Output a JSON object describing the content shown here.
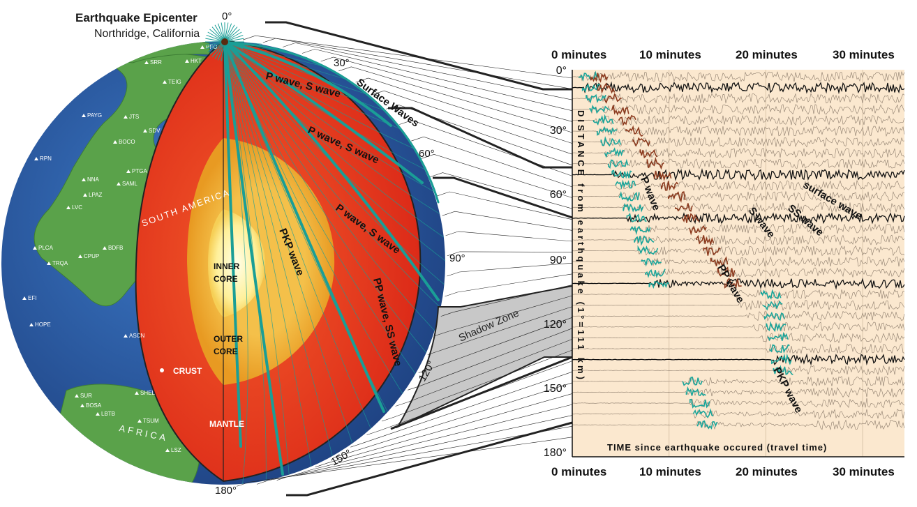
{
  "header": {
    "title": "Earthquake Epicenter",
    "subtitle": "Northridge, California"
  },
  "globe": {
    "stations": [
      "PFO",
      "SRR",
      "HKT",
      "TEIG",
      "PAYG",
      "JTS",
      "SDV",
      "BOCO",
      "RPN",
      "PTGA",
      "SAML",
      "NNA",
      "LPAZ",
      "LVC",
      "BDFB",
      "PLCA",
      "CPUP",
      "TRQA",
      "EFI",
      "HOPE",
      "ASCN",
      "SUR",
      "BOSA",
      "LBTB",
      "SHEL",
      "TSUM",
      "LSZ"
    ],
    "continent_labels": [
      "SOUTH AMERICA",
      "AFRICA"
    ],
    "layer_labels": {
      "inner_core": "INNER\nCORE",
      "outer_core": "OUTER\nCORE",
      "crust": "CRUST",
      "mantle": "MANTLE"
    },
    "degree_labels": [
      "0°",
      "30°",
      "60°",
      "90°",
      "120°",
      "150°",
      "180°"
    ],
    "wave_labels": [
      "P wave, S wave",
      "P wave, S wave",
      "P wave, S wave",
      "Surface Waves",
      "PKP wave",
      "PP wave, SS wave"
    ],
    "shadow_zone_label": "Shadow Zone",
    "colors": {
      "ocean": "#2a5fa8",
      "land": "#5aa24a",
      "mantle": "#e8321e",
      "outer_core": "#e8a020",
      "inner_core": "#fff6a8",
      "ray": "#1a9e96",
      "shadow": "#c8c8c8"
    }
  },
  "seismogram": {
    "top_axis_labels": [
      "0 minutes",
      "10 minutes",
      "20 minutes",
      "30 minutes"
    ],
    "bottom_axis_labels": [
      "0 minutes",
      "10 minutes",
      "20 minutes",
      "30 minutes"
    ],
    "distance_ticks": [
      "0°",
      "30°",
      "60°",
      "90°",
      "120°",
      "150°",
      "180°"
    ],
    "y_title": "DISTANCE from earthquake (1°=111 km)",
    "x_title": "TIME since earthquake occured (travel time)",
    "phase_labels": [
      "P wave",
      "S wave",
      "SS wave",
      "surface wave",
      "PP wave",
      "PKP wave"
    ],
    "colors": {
      "background": "#fbe8cf",
      "p_phase": "#1aa59a",
      "s_phase": "#8b3a1e",
      "trace": "#222222"
    }
  }
}
